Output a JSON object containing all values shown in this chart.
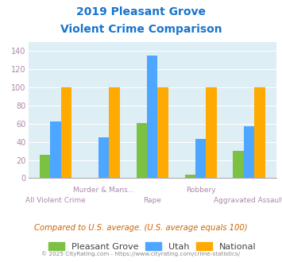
{
  "title_line1": "2019 Pleasant Grove",
  "title_line2": "Violent Crime Comparison",
  "title_color": "#1874cd",
  "categories": [
    "All Violent Crime",
    "Murder & Mans...",
    "Rape",
    "Robbery",
    "Aggravated Assault"
  ],
  "pleasant_grove": [
    26,
    0,
    61,
    4,
    30
  ],
  "utah": [
    62,
    45,
    135,
    43,
    57
  ],
  "national": [
    100,
    100,
    100,
    100,
    100
  ],
  "pleasant_grove_color": "#7bc142",
  "utah_color": "#4da6ff",
  "national_color": "#ffaa00",
  "ylim": [
    0,
    150
  ],
  "yticks": [
    0,
    20,
    40,
    60,
    80,
    100,
    120,
    140
  ],
  "plot_bg": "#ddeef5",
  "footer_text": "Compared to U.S. average. (U.S. average equals 100)",
  "footer_color": "#cc6600",
  "copyright_text": "© 2025 CityRating.com - https://www.cityrating.com/crime-statistics/",
  "copyright_color": "#888888",
  "tick_label_color": "#aa88aa",
  "grid_color": "#ffffff",
  "bar_width": 0.22,
  "legend_labels": [
    "Pleasant Grove",
    "Utah",
    "National"
  ],
  "legend_text_color": "#444444"
}
